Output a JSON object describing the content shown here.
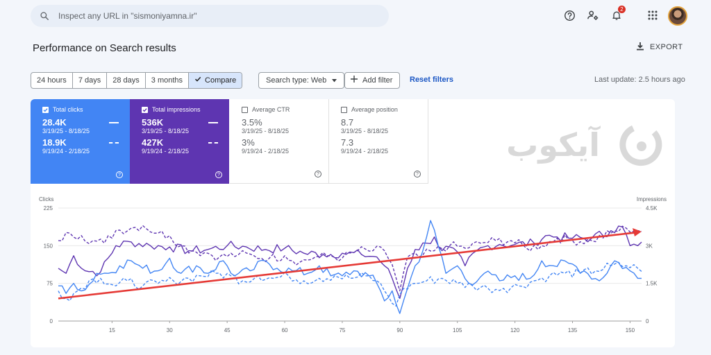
{
  "search": {
    "placeholder": "Inspect any URL in \"sismoniyamna.ir\""
  },
  "header": {
    "help_icon": "help-circle-icon",
    "account_icon": "manage-accounts-icon",
    "notifications_icon": "bell-icon",
    "notification_count": "2",
    "apps_icon": "apps-grid-icon"
  },
  "page": {
    "title": "Performance on Search results",
    "export_label": "EXPORT"
  },
  "filters": {
    "ranges": [
      "24 hours",
      "7 days",
      "28 days",
      "3 months"
    ],
    "compare_label": "Compare",
    "search_type": "Search type: Web",
    "add_filter": "Add filter",
    "reset": "Reset filters",
    "last_update": "Last update: 2.5 hours ago"
  },
  "metrics": [
    {
      "label": "Total clicks",
      "checked": true,
      "current": "28.4K",
      "current_range": "3/19/25 - 8/18/25",
      "previous": "18.9K",
      "previous_range": "9/19/24 - 2/18/25",
      "color": "#4285f4"
    },
    {
      "label": "Total impressions",
      "checked": true,
      "current": "536K",
      "current_range": "3/19/25 - 8/18/25",
      "previous": "427K",
      "previous_range": "9/19/24 - 2/18/25",
      "color": "#5e35b1"
    },
    {
      "label": "Average CTR",
      "checked": false,
      "current": "3.5%",
      "current_range": "3/19/25 - 8/18/25",
      "previous": "3%",
      "previous_range": "9/19/24 - 2/18/25"
    },
    {
      "label": "Average position",
      "checked": false,
      "current": "8.7",
      "current_range": "3/19/25 - 8/18/25",
      "previous": "7.3",
      "previous_range": "9/19/24 - 2/18/25"
    }
  ],
  "watermark_text": "آیکوب",
  "chart_data": {
    "type": "line",
    "ylabel_left": "Clicks",
    "ylabel_right": "Impressions",
    "left_ticks": [
      "225",
      "150",
      "75",
      "0"
    ],
    "right_ticks": [
      "4.5K",
      "3K",
      "1.5K",
      "0"
    ],
    "ylim_left": [
      0,
      225
    ],
    "ylim_right": [
      0,
      4500
    ],
    "x_ticks": [
      "15",
      "30",
      "45",
      "60",
      "75",
      "90",
      "105",
      "120",
      "135",
      "150"
    ],
    "xlim": [
      1,
      153
    ],
    "grid": "horizontal",
    "series": [
      {
        "key": "impressions_current",
        "axis": "right",
        "style": "solid",
        "color": "#5e35b1",
        "anchors": [
          [
            1,
            2100
          ],
          [
            3,
            1900
          ],
          [
            5,
            2600
          ],
          [
            8,
            2000
          ],
          [
            12,
            1950
          ],
          [
            16,
            3000
          ],
          [
            20,
            3150
          ],
          [
            25,
            3000
          ],
          [
            30,
            2950
          ],
          [
            35,
            2800
          ],
          [
            40,
            2850
          ],
          [
            45,
            3000
          ],
          [
            50,
            2950
          ],
          [
            55,
            2850
          ],
          [
            60,
            2900
          ],
          [
            65,
            2700
          ],
          [
            70,
            2650
          ],
          [
            75,
            2700
          ],
          [
            80,
            2650
          ],
          [
            84,
            2550
          ],
          [
            86,
            2200
          ],
          [
            88,
            1700
          ],
          [
            90,
            900
          ],
          [
            92,
            2100
          ],
          [
            94,
            2850
          ],
          [
            97,
            3100
          ],
          [
            99,
            3350
          ],
          [
            101,
            2800
          ],
          [
            103,
            2950
          ],
          [
            107,
            2200
          ],
          [
            110,
            2800
          ],
          [
            113,
            3000
          ],
          [
            116,
            3050
          ],
          [
            120,
            3050
          ],
          [
            125,
            3100
          ],
          [
            128,
            3400
          ],
          [
            131,
            3350
          ],
          [
            135,
            3300
          ],
          [
            140,
            3300
          ],
          [
            145,
            3600
          ],
          [
            148,
            3750
          ],
          [
            150,
            3000
          ],
          [
            152,
            3000
          ]
        ]
      },
      {
        "key": "impressions_previous",
        "axis": "right",
        "style": "dashed",
        "color": "#5e35b1",
        "anchors": [
          [
            1,
            3200
          ],
          [
            4,
            3500
          ],
          [
            7,
            3400
          ],
          [
            10,
            3200
          ],
          [
            13,
            3100
          ],
          [
            16,
            3600
          ],
          [
            20,
            3700
          ],
          [
            23,
            3800
          ],
          [
            27,
            3500
          ],
          [
            30,
            3400
          ],
          [
            33,
            3000
          ],
          [
            36,
            2800
          ],
          [
            40,
            2700
          ],
          [
            43,
            2550
          ],
          [
            48,
            2650
          ],
          [
            52,
            2600
          ],
          [
            56,
            2500
          ],
          [
            60,
            2600
          ],
          [
            64,
            2350
          ],
          [
            68,
            2550
          ],
          [
            72,
            2600
          ],
          [
            75,
            2500
          ],
          [
            79,
            2800
          ],
          [
            83,
            2800
          ],
          [
            86,
            2800
          ],
          [
            88,
            2250
          ],
          [
            90,
            1200
          ],
          [
            92,
            2550
          ],
          [
            95,
            2550
          ],
          [
            99,
            2800
          ],
          [
            103,
            3000
          ],
          [
            107,
            2900
          ],
          [
            111,
            3100
          ],
          [
            115,
            3200
          ],
          [
            119,
            3200
          ],
          [
            123,
            2900
          ],
          [
            127,
            3000
          ],
          [
            131,
            3300
          ],
          [
            135,
            3200
          ],
          [
            140,
            3200
          ],
          [
            145,
            3500
          ],
          [
            149,
            3700
          ],
          [
            152,
            3600
          ]
        ]
      },
      {
        "key": "clicks_current",
        "axis": "left",
        "style": "solid",
        "color": "#4285f4",
        "anchors": [
          [
            1,
            70
          ],
          [
            3,
            55
          ],
          [
            5,
            75
          ],
          [
            8,
            62
          ],
          [
            11,
            95
          ],
          [
            14,
            95
          ],
          [
            17,
            110
          ],
          [
            20,
            120
          ],
          [
            23,
            105
          ],
          [
            27,
            100
          ],
          [
            30,
            125
          ],
          [
            33,
            95
          ],
          [
            37,
            110
          ],
          [
            40,
            95
          ],
          [
            44,
            120
          ],
          [
            47,
            90
          ],
          [
            51,
            100
          ],
          [
            55,
            120
          ],
          [
            58,
            105
          ],
          [
            62,
            100
          ],
          [
            66,
            95
          ],
          [
            69,
            110
          ],
          [
            72,
            90
          ],
          [
            75,
            90
          ],
          [
            78,
            100
          ],
          [
            82,
            90
          ],
          [
            84,
            75
          ],
          [
            86,
            40
          ],
          [
            88,
            60
          ],
          [
            90,
            15
          ],
          [
            92,
            65
          ],
          [
            94,
            110
          ],
          [
            96,
            140
          ],
          [
            98,
            200
          ],
          [
            100,
            150
          ],
          [
            102,
            95
          ],
          [
            105,
            110
          ],
          [
            108,
            75
          ],
          [
            112,
            95
          ],
          [
            116,
            80
          ],
          [
            120,
            90
          ],
          [
            124,
            85
          ],
          [
            127,
            120
          ],
          [
            130,
            110
          ],
          [
            134,
            115
          ],
          [
            138,
            100
          ],
          [
            142,
            80
          ],
          [
            146,
            120
          ],
          [
            150,
            100
          ],
          [
            152,
            85
          ]
        ]
      },
      {
        "key": "clicks_previous",
        "axis": "left",
        "style": "dashed",
        "color": "#4285f4",
        "anchors": [
          [
            1,
            60
          ],
          [
            3,
            45
          ],
          [
            6,
            60
          ],
          [
            9,
            80
          ],
          [
            12,
            85
          ],
          [
            16,
            70
          ],
          [
            19,
            80
          ],
          [
            23,
            70
          ],
          [
            27,
            75
          ],
          [
            31,
            80
          ],
          [
            35,
            85
          ],
          [
            38,
            90
          ],
          [
            42,
            95
          ],
          [
            46,
            90
          ],
          [
            49,
            80
          ],
          [
            53,
            90
          ],
          [
            57,
            85
          ],
          [
            61,
            90
          ],
          [
            65,
            80
          ],
          [
            69,
            85
          ],
          [
            73,
            90
          ],
          [
            77,
            85
          ],
          [
            81,
            90
          ],
          [
            84,
            80
          ],
          [
            86,
            60
          ],
          [
            89,
            30
          ],
          [
            91,
            65
          ],
          [
            94,
            75
          ],
          [
            97,
            80
          ],
          [
            101,
            85
          ],
          [
            105,
            75
          ],
          [
            109,
            70
          ],
          [
            113,
            65
          ],
          [
            117,
            65
          ],
          [
            121,
            70
          ],
          [
            125,
            80
          ],
          [
            129,
            90
          ],
          [
            133,
            95
          ],
          [
            137,
            95
          ],
          [
            141,
            100
          ],
          [
            145,
            110
          ],
          [
            149,
            110
          ],
          [
            152,
            105
          ]
        ]
      }
    ],
    "trend_arrow": {
      "from": [
        1,
        45
      ],
      "to": [
        153,
        178
      ],
      "color": "#e53935"
    }
  }
}
